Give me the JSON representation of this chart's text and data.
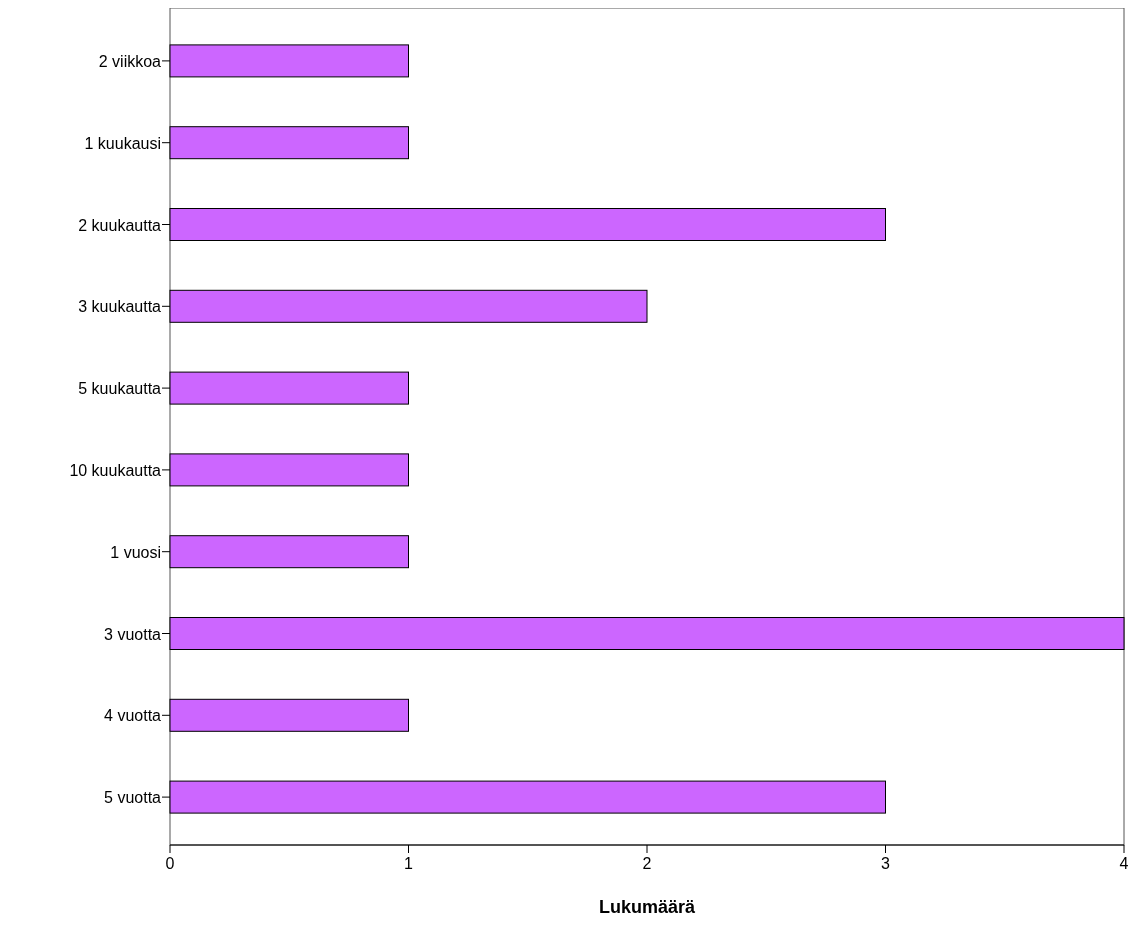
{
  "chart_data": {
    "type": "bar",
    "orientation": "horizontal",
    "xlabel": "Lukumäärä",
    "categories": [
      "2 viikkoa",
      "1 kuukausi",
      "2 kuukautta",
      "3 kuukautta",
      "5 kuukautta",
      "10 kuukautta",
      "1 vuosi",
      "3 vuotta",
      "4 vuotta",
      "5 vuotta"
    ],
    "values": [
      1,
      1,
      3,
      2,
      1,
      1,
      1,
      4,
      1,
      3
    ],
    "color": "#cc66ff",
    "xlim": [
      0,
      4
    ],
    "xticks": [
      0,
      1,
      2,
      3,
      4
    ],
    "grid": false
  }
}
